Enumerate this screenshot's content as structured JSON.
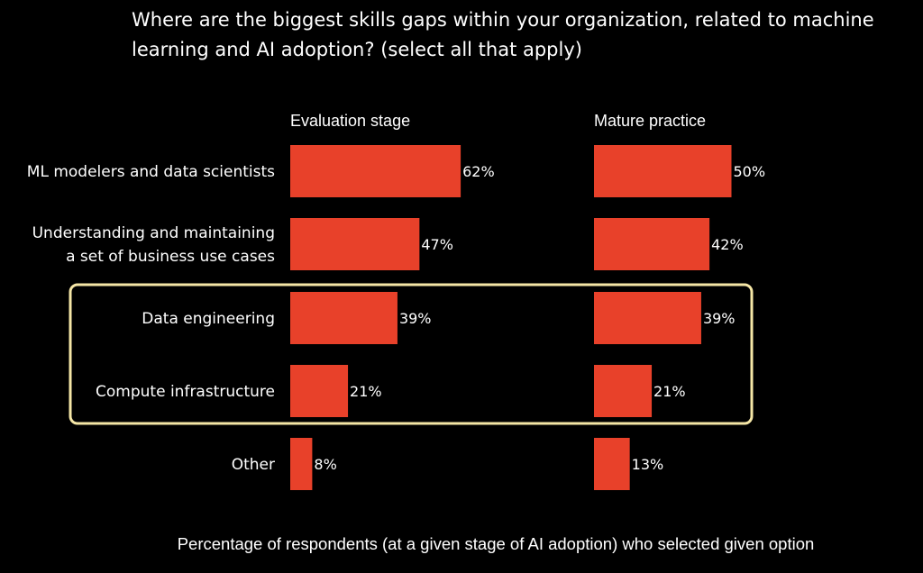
{
  "title": "Where are the biggest skills gaps within your organization, related to machine learning and AI adoption? (select all that apply)",
  "caption": "Percentage of respondents (at a given stage of AI adoption) who selected given option",
  "colors": {
    "background": "#000000",
    "bar": "#e8412a",
    "highlight_border": "#f5e6a6",
    "text": "#ffffff"
  },
  "chart_data": [
    {
      "type": "bar",
      "orientation": "horizontal",
      "title": "Evaluation stage",
      "categories": [
        "ML modelers and data scientists",
        "Understanding and maintaining a set of business use cases",
        "Data engineering",
        "Compute infrastructure",
        "Other"
      ],
      "category_lines": [
        [
          "ML modelers and data scientists"
        ],
        [
          "Understanding and maintaining",
          "a set of business use cases"
        ],
        [
          "Data engineering"
        ],
        [
          "Compute infrastructure"
        ],
        [
          "Other"
        ]
      ],
      "values": [
        62,
        47,
        39,
        21,
        8
      ],
      "value_labels": [
        "62%",
        "47%",
        "39%",
        "21%",
        "8%"
      ],
      "unit": "%",
      "xlim": [
        0,
        100
      ],
      "highlighted_categories": [
        "Data engineering",
        "Compute infrastructure"
      ]
    },
    {
      "type": "bar",
      "orientation": "horizontal",
      "title": "Mature practice",
      "categories": [
        "ML modelers and data scientists",
        "Understanding and maintaining a set of business use cases",
        "Data engineering",
        "Compute infrastructure",
        "Other"
      ],
      "values": [
        50,
        42,
        39,
        21,
        13
      ],
      "value_labels": [
        "50%",
        "42%",
        "39%",
        "21%",
        "13%"
      ],
      "unit": "%",
      "xlim": [
        0,
        100
      ],
      "highlighted_categories": [
        "Data engineering",
        "Compute infrastructure"
      ]
    }
  ]
}
